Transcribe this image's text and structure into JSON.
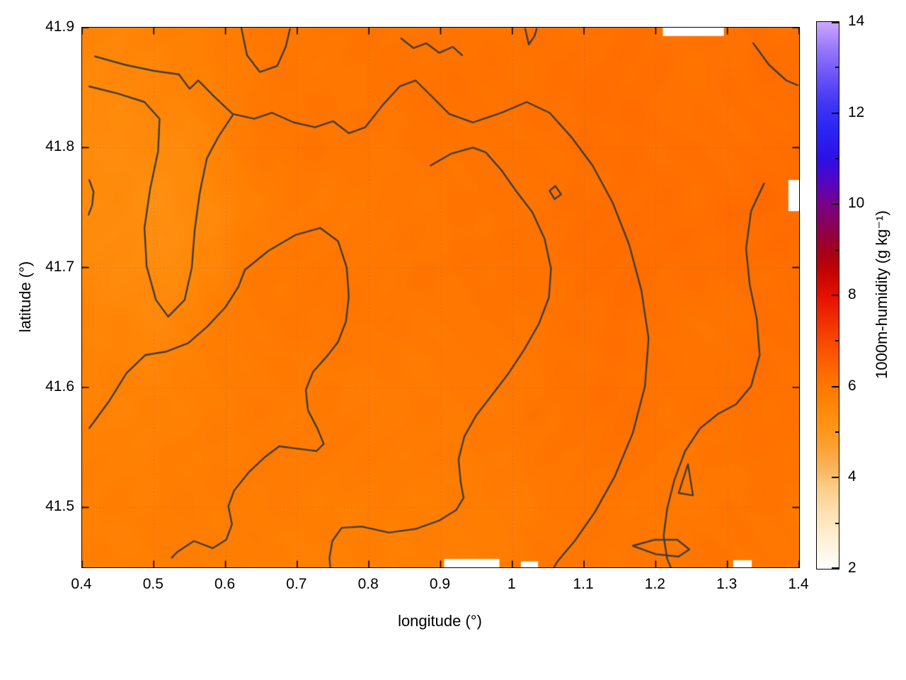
{
  "figure": {
    "xlabel": "longitude (°)",
    "ylabel": "latitude (°)"
  },
  "axes": {
    "x": {
      "range": [
        0.4,
        1.4
      ],
      "ticks": [
        {
          "v": 0.4,
          "label": "0.4"
        },
        {
          "v": 0.5,
          "label": "0.5"
        },
        {
          "v": 0.6,
          "label": "0.6"
        },
        {
          "v": 0.7,
          "label": "0.7"
        },
        {
          "v": 0.8,
          "label": "0.8"
        },
        {
          "v": 0.9,
          "label": "0.9"
        },
        {
          "v": 1.0,
          "label": "1"
        },
        {
          "v": 1.1,
          "label": "1.1"
        },
        {
          "v": 1.2,
          "label": "1.2"
        },
        {
          "v": 1.3,
          "label": "1.3"
        },
        {
          "v": 1.4,
          "label": "1.4"
        }
      ]
    },
    "y": {
      "range": [
        41.45,
        41.9
      ],
      "ticks": [
        {
          "v": 41.5,
          "label": "41.5"
        },
        {
          "v": 41.6,
          "label": "41.6"
        },
        {
          "v": 41.7,
          "label": "41.7"
        },
        {
          "v": 41.8,
          "label": "41.8"
        },
        {
          "v": 41.9,
          "label": "41.9"
        }
      ]
    }
  },
  "colorbar": {
    "label": "1000m-humidity (g kg⁻¹)",
    "range": [
      2,
      14
    ],
    "ticks": [
      {
        "v": 2,
        "label": "2"
      },
      {
        "v": 4,
        "label": "4"
      },
      {
        "v": 6,
        "label": "6"
      },
      {
        "v": 8,
        "label": "8"
      },
      {
        "v": 10,
        "label": "10"
      },
      {
        "v": 12,
        "label": "12"
      },
      {
        "v": 14,
        "label": "14"
      }
    ],
    "minor_ticks": [
      3,
      5,
      7,
      9,
      11,
      13
    ]
  },
  "chart_data": {
    "type": "heatmap",
    "title": "",
    "xlabel": "longitude (°)",
    "ylabel": "latitude (°)",
    "colorbar_label": "1000m-humidity (g kg⁻¹)",
    "x_range": [
      0.4,
      1.4
    ],
    "y_range": [
      41.45,
      41.9
    ],
    "value_range": [
      2,
      14
    ],
    "colormap_stops": [
      [
        2.0,
        "#ffffff"
      ],
      [
        2.6,
        "#fff1d8"
      ],
      [
        3.2,
        "#fde2b4"
      ],
      [
        3.8,
        "#fbcc85"
      ],
      [
        4.2,
        "#fab45c"
      ],
      [
        4.6,
        "#fca436"
      ],
      [
        5.0,
        "#ff971c"
      ],
      [
        5.4,
        "#ff8c0c"
      ],
      [
        5.8,
        "#ff7e02"
      ],
      [
        6.2,
        "#ff6f00"
      ],
      [
        6.6,
        "#fd5c00"
      ],
      [
        7.0,
        "#f94700"
      ],
      [
        7.5,
        "#f02b00"
      ],
      [
        8.0,
        "#e31000"
      ],
      [
        8.5,
        "#c40400"
      ],
      [
        9.0,
        "#a3001e"
      ],
      [
        9.5,
        "#8a0052"
      ],
      [
        10.0,
        "#790089"
      ],
      [
        10.5,
        "#5406c2"
      ],
      [
        11.0,
        "#2d10e6"
      ],
      [
        11.6,
        "#2a24f2"
      ],
      [
        12.2,
        "#4136f4"
      ],
      [
        12.8,
        "#6a52f6"
      ],
      [
        13.4,
        "#9678f9"
      ],
      [
        14.0,
        "#cda6fd"
      ]
    ],
    "grid": {
      "lon_start": 0.4,
      "lon_step": 0.05,
      "lat_start": 41.9,
      "lat_step": -0.05,
      "units": "g kg⁻¹",
      "values": [
        [
          5.6,
          5.6,
          5.7,
          5.8,
          5.9,
          6.0,
          6.0,
          6.05,
          6.1,
          6.1,
          6.05,
          6.1,
          6.1,
          6.15,
          6.15,
          6.2,
          6.1,
          6.1,
          6.15,
          6.2,
          6.15
        ],
        [
          5.5,
          5.5,
          5.6,
          5.7,
          5.85,
          5.95,
          6.0,
          6.0,
          6.05,
          6.1,
          6.1,
          6.1,
          6.1,
          6.15,
          6.2,
          6.2,
          6.15,
          6.1,
          6.15,
          6.2,
          6.2
        ],
        [
          5.35,
          5.4,
          5.4,
          5.5,
          5.7,
          5.9,
          6.0,
          6.0,
          6.0,
          6.0,
          6.05,
          6.1,
          6.1,
          6.15,
          6.2,
          6.2,
          6.2,
          6.2,
          6.2,
          6.25,
          6.2
        ],
        [
          5.4,
          5.4,
          5.3,
          5.45,
          5.6,
          5.8,
          5.9,
          5.95,
          6.0,
          6.0,
          6.0,
          6.05,
          6.1,
          6.15,
          6.2,
          6.2,
          6.2,
          6.2,
          6.25,
          6.25,
          6.2
        ],
        [
          5.5,
          5.45,
          5.4,
          5.5,
          5.7,
          5.9,
          5.95,
          6.0,
          6.0,
          6.0,
          6.0,
          6.05,
          6.1,
          6.1,
          6.15,
          6.2,
          6.2,
          6.2,
          6.2,
          6.2,
          6.2
        ],
        [
          5.6,
          5.55,
          5.55,
          5.65,
          5.8,
          5.9,
          5.95,
          6.0,
          6.0,
          5.95,
          5.95,
          6.0,
          6.05,
          6.1,
          6.15,
          6.2,
          6.15,
          6.1,
          6.1,
          6.15,
          6.2
        ],
        [
          5.65,
          5.7,
          5.7,
          5.75,
          5.85,
          5.9,
          5.9,
          5.95,
          5.9,
          5.9,
          5.9,
          5.95,
          6.0,
          6.05,
          6.1,
          6.15,
          6.1,
          6.1,
          6.1,
          6.1,
          6.1
        ],
        [
          5.7,
          5.75,
          5.75,
          5.8,
          5.8,
          5.85,
          5.9,
          5.9,
          5.85,
          5.85,
          5.85,
          5.9,
          5.95,
          6.0,
          6.05,
          6.1,
          6.05,
          6.0,
          6.05,
          6.1,
          6.1
        ],
        [
          5.7,
          5.75,
          5.8,
          5.8,
          5.8,
          5.8,
          5.85,
          5.8,
          5.8,
          5.78,
          5.8,
          5.85,
          5.9,
          5.95,
          6.0,
          6.05,
          6.0,
          6.0,
          6.0,
          6.05,
          6.05
        ],
        [
          5.75,
          5.8,
          5.8,
          5.85,
          5.8,
          5.8,
          5.8,
          5.78,
          5.78,
          5.78,
          5.8,
          5.85,
          5.9,
          5.95,
          6.0,
          6.0,
          6.0,
          6.0,
          6.0,
          6.0,
          6.0
        ]
      ]
    },
    "contour_color": "#3d3d3d",
    "contours": [
      [
        [
          0.418,
          41.876
        ],
        [
          0.46,
          41.869
        ],
        [
          0.5,
          41.864
        ],
        [
          0.535,
          41.861
        ],
        [
          0.55,
          41.849
        ],
        [
          0.562,
          41.856
        ],
        [
          0.585,
          41.842
        ],
        [
          0.61,
          41.828
        ],
        [
          0.64,
          41.824
        ],
        [
          0.665,
          41.829
        ],
        [
          0.695,
          41.821
        ],
        [
          0.725,
          41.817
        ],
        [
          0.75,
          41.822
        ],
        [
          0.772,
          41.812
        ],
        [
          0.795,
          41.817
        ],
        [
          0.82,
          41.836
        ],
        [
          0.843,
          41.851
        ],
        [
          0.865,
          41.856
        ],
        [
          0.887,
          41.843
        ],
        [
          0.912,
          41.828
        ],
        [
          0.945,
          41.821
        ],
        [
          0.985,
          41.829
        ],
        [
          1.02,
          41.838
        ],
        [
          1.052,
          41.829
        ],
        [
          1.082,
          41.809
        ],
        [
          1.112,
          41.785
        ],
        [
          1.14,
          41.754
        ],
        [
          1.163,
          41.719
        ],
        [
          1.18,
          41.681
        ],
        [
          1.19,
          41.641
        ],
        [
          1.185,
          41.601
        ],
        [
          1.168,
          41.562
        ],
        [
          1.143,
          41.526
        ],
        [
          1.115,
          41.496
        ],
        [
          1.087,
          41.472
        ],
        [
          1.063,
          41.455
        ],
        [
          1.058,
          41.45
        ]
      ],
      [
        [
          0.41,
          41.851
        ],
        [
          0.45,
          41.845
        ],
        [
          0.487,
          41.838
        ],
        [
          0.508,
          41.824
        ],
        [
          0.506,
          41.797
        ],
        [
          0.495,
          41.766
        ],
        [
          0.487,
          41.733
        ],
        [
          0.49,
          41.701
        ],
        [
          0.503,
          41.673
        ],
        [
          0.52,
          41.659
        ],
        [
          0.543,
          41.673
        ],
        [
          0.553,
          41.7
        ],
        [
          0.557,
          41.731
        ],
        [
          0.564,
          41.762
        ],
        [
          0.574,
          41.791
        ],
        [
          0.59,
          41.809
        ],
        [
          0.61,
          41.827
        ]
      ],
      [
        [
          0.886,
          41.785
        ],
        [
          0.915,
          41.795
        ],
        [
          0.945,
          41.8
        ],
        [
          0.963,
          41.796
        ],
        [
          0.985,
          41.781
        ],
        [
          1.005,
          41.764
        ],
        [
          1.028,
          41.746
        ],
        [
          1.045,
          41.724
        ],
        [
          1.054,
          41.699
        ],
        [
          1.051,
          41.675
        ],
        [
          1.037,
          41.653
        ],
        [
          1.017,
          41.632
        ],
        [
          0.995,
          41.612
        ],
        [
          0.972,
          41.594
        ],
        [
          0.95,
          41.577
        ],
        [
          0.933,
          41.559
        ],
        [
          0.925,
          41.54
        ],
        [
          0.928,
          41.521
        ],
        [
          0.932,
          41.508
        ],
        [
          0.922,
          41.498
        ],
        [
          0.898,
          41.489
        ],
        [
          0.865,
          41.482
        ],
        [
          0.828,
          41.479
        ],
        [
          0.79,
          41.484
        ],
        [
          0.762,
          41.483
        ],
        [
          0.749,
          41.472
        ],
        [
          0.745,
          41.458
        ],
        [
          0.746,
          41.45
        ]
      ],
      [
        [
          0.627,
          41.698
        ],
        [
          0.66,
          41.714
        ],
        [
          0.697,
          41.727
        ],
        [
          0.732,
          41.733
        ],
        [
          0.757,
          41.722
        ],
        [
          0.769,
          41.7
        ],
        [
          0.772,
          41.676
        ],
        [
          0.768,
          41.655
        ],
        [
          0.757,
          41.638
        ],
        [
          0.74,
          41.625
        ],
        [
          0.722,
          41.613
        ],
        [
          0.712,
          41.598
        ],
        [
          0.715,
          41.581
        ],
        [
          0.728,
          41.566
        ],
        [
          0.737,
          41.553
        ],
        [
          0.727,
          41.547
        ],
        [
          0.7,
          41.549
        ],
        [
          0.675,
          41.551
        ],
        [
          0.655,
          41.542
        ],
        [
          0.632,
          41.529
        ],
        [
          0.612,
          41.514
        ],
        [
          0.604,
          41.501
        ],
        [
          0.609,
          41.486
        ],
        [
          0.601,
          41.473
        ],
        [
          0.582,
          41.466
        ],
        [
          0.556,
          41.472
        ],
        [
          0.533,
          41.463
        ],
        [
          0.525,
          41.458
        ]
      ],
      [
        [
          0.41,
          41.566
        ],
        [
          0.437,
          41.588
        ],
        [
          0.462,
          41.612
        ],
        [
          0.488,
          41.627
        ],
        [
          0.518,
          41.63
        ],
        [
          0.548,
          41.637
        ],
        [
          0.575,
          41.651
        ],
        [
          0.6,
          41.667
        ],
        [
          0.618,
          41.684
        ],
        [
          0.627,
          41.698
        ]
      ],
      [
        [
          1.336,
          41.887
        ],
        [
          1.358,
          41.869
        ],
        [
          1.382,
          41.856
        ],
        [
          1.398,
          41.852
        ]
      ],
      [
        [
          1.351,
          41.77
        ],
        [
          1.333,
          41.747
        ],
        [
          1.326,
          41.716
        ],
        [
          1.331,
          41.686
        ],
        [
          1.341,
          41.657
        ],
        [
          1.345,
          41.627
        ],
        [
          1.333,
          41.601
        ],
        [
          1.312,
          41.586
        ],
        [
          1.287,
          41.578
        ],
        [
          1.262,
          41.566
        ],
        [
          1.241,
          41.547
        ],
        [
          1.226,
          41.523
        ],
        [
          1.216,
          41.499
        ],
        [
          1.211,
          41.476
        ],
        [
          1.216,
          41.457
        ],
        [
          1.221,
          41.45
        ]
      ],
      [
        [
          1.232,
          41.512
        ],
        [
          1.245,
          41.536
        ],
        [
          1.252,
          41.51
        ],
        [
          1.232,
          41.512
        ]
      ],
      [
        [
          1.168,
          41.468
        ],
        [
          1.2,
          41.461
        ],
        [
          1.232,
          41.459
        ],
        [
          1.247,
          41.465
        ],
        [
          1.23,
          41.473
        ],
        [
          1.198,
          41.473
        ],
        [
          1.168,
          41.468
        ]
      ],
      [
        [
          0.622,
          41.9
        ],
        [
          0.63,
          41.877
        ],
        [
          0.648,
          41.863
        ],
        [
          0.672,
          41.868
        ],
        [
          0.684,
          41.884
        ],
        [
          0.69,
          41.899
        ]
      ],
      [
        [
          0.845,
          41.891
        ],
        [
          0.862,
          41.883
        ],
        [
          0.88,
          41.887
        ],
        [
          0.898,
          41.879
        ],
        [
          0.917,
          41.884
        ],
        [
          0.93,
          41.877
        ]
      ],
      [
        [
          1.052,
          41.764
        ],
        [
          1.059,
          41.757
        ],
        [
          1.068,
          41.761
        ],
        [
          1.06,
          41.768
        ],
        [
          1.052,
          41.764
        ]
      ],
      [
        [
          0.41,
          41.773
        ],
        [
          0.416,
          41.763
        ],
        [
          0.414,
          41.752
        ],
        [
          0.409,
          41.744
        ]
      ],
      [
        [
          1.018,
          41.899
        ],
        [
          1.023,
          41.886
        ],
        [
          1.031,
          41.893
        ],
        [
          1.034,
          41.899
        ]
      ]
    ],
    "gaps": [
      [
        1.21,
        1.295,
        41.893,
        41.9
      ],
      [
        1.385,
        1.4,
        41.747,
        41.773
      ],
      [
        0.905,
        0.982,
        41.45,
        41.457
      ],
      [
        1.012,
        1.036,
        41.45,
        41.455
      ],
      [
        1.308,
        1.334,
        41.45,
        41.456
      ]
    ]
  }
}
